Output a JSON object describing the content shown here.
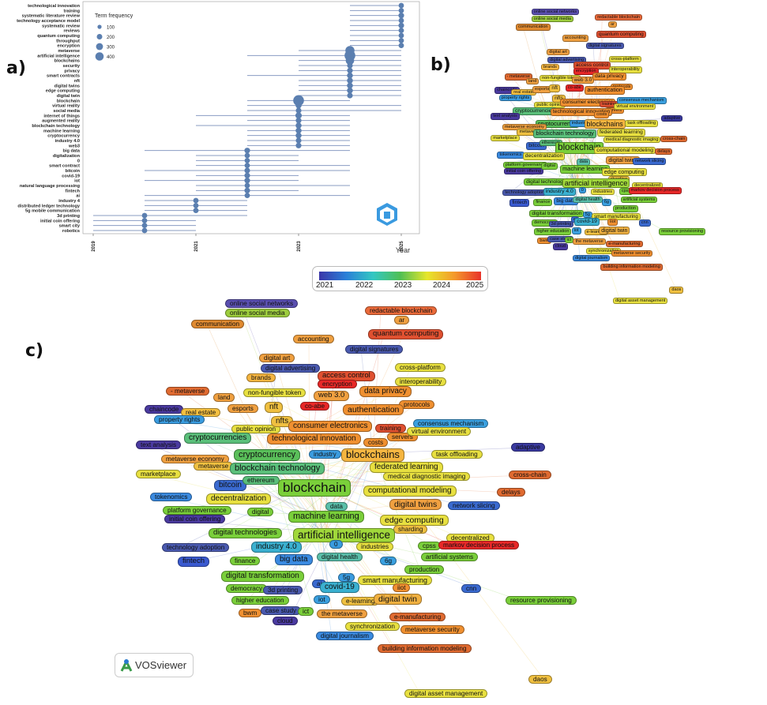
{
  "labels": {
    "a": "a)",
    "b": "b)",
    "c": "c)"
  },
  "chart_data": [
    {
      "type": "scatter",
      "panel": "a",
      "title": "",
      "xlabel": "Year",
      "ylabel": "",
      "xlim": [
        2018.8,
        2025.2
      ],
      "x_ticks": [
        "2019",
        "2021",
        "2023",
        "2025"
      ],
      "legend_title": "Term frequency",
      "legend_sizes": [
        "100",
        "200",
        "300",
        "400"
      ],
      "legend_placement": "top-left",
      "point_color": "#5b7fb0",
      "line_color": "#8a9cc2",
      "terms": [
        {
          "term": "technological innovation",
          "start": 2024,
          "peak": 2025,
          "end": 2025,
          "freq": 40
        },
        {
          "term": "training",
          "start": 2024,
          "peak": 2025,
          "end": 2025,
          "freq": 40
        },
        {
          "term": "systematic literature review",
          "start": 2024,
          "peak": 2025,
          "end": 2025,
          "freq": 50
        },
        {
          "term": "technology acceptance model",
          "start": 2024,
          "peak": 2025,
          "end": 2025,
          "freq": 40
        },
        {
          "term": "systematic review",
          "start": 2024,
          "peak": 2025,
          "end": 2025,
          "freq": 50
        },
        {
          "term": "reviews",
          "start": 2024,
          "peak": 2025,
          "end": 2025,
          "freq": 40
        },
        {
          "term": "quantum computing",
          "start": 2024,
          "peak": 2025,
          "end": 2025,
          "freq": 40
        },
        {
          "term": "throughput",
          "start": 2024,
          "peak": 2025,
          "end": 2025,
          "freq": 40
        },
        {
          "term": "encryption",
          "start": 2024,
          "peak": 2025,
          "end": 2025,
          "freq": 40
        },
        {
          "term": "metaverse",
          "start": 2023,
          "peak": 2024,
          "end": 2025,
          "freq": 250
        },
        {
          "term": "artificial intelligence",
          "start": 2022,
          "peak": 2024,
          "end": 2025,
          "freq": 400
        },
        {
          "term": "blockchains",
          "start": 2023,
          "peak": 2024,
          "end": 2025,
          "freq": 200
        },
        {
          "term": "security",
          "start": 2023,
          "peak": 2024,
          "end": 2025,
          "freq": 50
        },
        {
          "term": "privacy",
          "start": 2023,
          "peak": 2024,
          "end": 2025,
          "freq": 50
        },
        {
          "term": "smart contracts",
          "start": 2022,
          "peak": 2024,
          "end": 2025,
          "freq": 60
        },
        {
          "term": "nft",
          "start": 2023,
          "peak": 2024,
          "end": 2025,
          "freq": 60
        },
        {
          "term": "digital twins",
          "start": 2023,
          "peak": 2024,
          "end": 2025,
          "freq": 60
        },
        {
          "term": "edge computing",
          "start": 2023,
          "peak": 2024,
          "end": 2025,
          "freq": 60
        },
        {
          "term": "digital twin",
          "start": 2023,
          "peak": 2024,
          "end": 2025,
          "freq": 50
        },
        {
          "term": "blockchain",
          "start": 2022,
          "peak": 2023,
          "end": 2024,
          "freq": 400
        },
        {
          "term": "virtual reality",
          "start": 2022,
          "peak": 2023,
          "end": 2025,
          "freq": 60
        },
        {
          "term": "social media",
          "start": 2022,
          "peak": 2023,
          "end": 2025,
          "freq": 50
        },
        {
          "term": "internet of things",
          "start": 2021,
          "peak": 2023,
          "end": 2024,
          "freq": 80
        },
        {
          "term": "augmented reality",
          "start": 2022,
          "peak": 2023,
          "end": 2024,
          "freq": 50
        },
        {
          "term": "blockchain technology",
          "start": 2021,
          "peak": 2023,
          "end": 2024,
          "freq": 60
        },
        {
          "term": "machine learning",
          "start": 2022,
          "peak": 2023,
          "end": 2024,
          "freq": 60
        },
        {
          "term": "cryptocurrency",
          "start": 2022,
          "peak": 2023,
          "end": 2024,
          "freq": 60
        },
        {
          "term": "industry 4.0",
          "start": 2022,
          "peak": 2023,
          "end": 2024,
          "freq": 50
        },
        {
          "term": "web3",
          "start": 2022,
          "peak": 2023,
          "end": 2024,
          "freq": 50
        },
        {
          "term": "big data",
          "start": 2020,
          "peak": 2022,
          "end": 2024,
          "freq": 50
        },
        {
          "term": "digitalization",
          "start": 2021,
          "peak": 2022,
          "end": 2023,
          "freq": 40
        },
        {
          "term": "0",
          "start": 2021,
          "peak": 2022,
          "end": 2023,
          "freq": 40
        },
        {
          "term": "smart contract",
          "start": 2021,
          "peak": 2022,
          "end": 2024,
          "freq": 40
        },
        {
          "term": "bitcoin",
          "start": 2020,
          "peak": 2022,
          "end": 2024,
          "freq": 50
        },
        {
          "term": "covid-19",
          "start": 2021,
          "peak": 2022,
          "end": 2023,
          "freq": 50
        },
        {
          "term": "iot",
          "start": 2020,
          "peak": 2022,
          "end": 2023,
          "freq": 50
        },
        {
          "term": "natural language processing",
          "start": 2021,
          "peak": 2022,
          "end": 2024,
          "freq": 40
        },
        {
          "term": "fintech",
          "start": 2021,
          "peak": 2022,
          "end": 2023,
          "freq": 50
        },
        {
          "term": "ai",
          "start": 2020,
          "peak": 2022,
          "end": 2024,
          "freq": 40
        },
        {
          "term": "industry 4",
          "start": 2020,
          "peak": 2021,
          "end": 2022,
          "freq": 40
        },
        {
          "term": "distributed ledger technology",
          "start": 2020,
          "peak": 2021,
          "end": 2022,
          "freq": 40
        },
        {
          "term": "5g mobile communication",
          "start": 2020,
          "peak": 2021,
          "end": 2022,
          "freq": 40
        },
        {
          "term": "3d printing",
          "start": 2019,
          "peak": 2020,
          "end": 2022,
          "freq": 40
        },
        {
          "term": "initial coin offering",
          "start": 2019,
          "peak": 2020,
          "end": 2021,
          "freq": 40
        },
        {
          "term": "smart city",
          "start": 2019,
          "peak": 2020,
          "end": 2021,
          "freq": 40
        },
        {
          "term": "robotics",
          "start": 2019,
          "peak": 2020,
          "end": 2021,
          "freq": 40
        }
      ]
    },
    {
      "type": "network",
      "panel": "b",
      "tool": "VOSviewer overlay visualization",
      "colorbar": {
        "ticks": [
          "2021",
          "2022",
          "2023",
          "2024",
          "2025"
        ]
      },
      "nodes": [
        {
          "label": "online social networks",
          "color": "#5a4fb0"
        },
        {
          "label": "online social media",
          "color": "#9ccc3c"
        },
        {
          "label": "redactable blockchain",
          "color": "#ea6a3a"
        },
        {
          "label": "ar",
          "color": "#f0a040"
        },
        {
          "label": "communication",
          "color": "#e08a30"
        },
        {
          "label": "accounting",
          "color": "#f0a040"
        },
        {
          "label": "quantum computing",
          "color": "#e05030"
        },
        {
          "label": "digital signatures",
          "color": "#4a5ab0"
        },
        {
          "label": "digital art",
          "color": "#f0a040"
        },
        {
          "label": "digital advertising",
          "color": "#4a5ab0"
        },
        {
          "label": "brands",
          "color": "#f5b540"
        },
        {
          "label": "access control",
          "color": "#e05030"
        },
        {
          "label": "cross-platform",
          "color": "#e8e040"
        },
        {
          "label": "encryption",
          "color": "#e82828"
        },
        {
          "label": "interoperability",
          "color": "#e8e040"
        },
        {
          "label": "- metaverse",
          "color": "#e06a30"
        },
        {
          "label": "land",
          "color": "#f0a040"
        },
        {
          "label": "non-fungible token",
          "color": "#e8e040"
        },
        {
          "label": "web 3.0",
          "color": "#f0a040"
        },
        {
          "label": "data privacy",
          "color": "#f09030"
        },
        {
          "label": "protocols",
          "color": "#f09030"
        },
        {
          "label": "chaincode",
          "color": "#4a3aa0"
        },
        {
          "label": "real estate",
          "color": "#f5c040"
        },
        {
          "label": "esports",
          "color": "#f0a040"
        },
        {
          "label": "nft",
          "color": "#f0c040"
        },
        {
          "label": "co-abe",
          "color": "#e82828"
        },
        {
          "label": "authentication",
          "color": "#f09030"
        },
        {
          "label": "property rights",
          "color": "#3a9ce0"
        },
        {
          "label": "public opinion",
          "color": "#e8e040"
        },
        {
          "label": "nfts",
          "color": "#f0c040"
        },
        {
          "label": "consumer electronics",
          "color": "#f09030"
        },
        {
          "label": "training",
          "color": "#e05030"
        },
        {
          "label": "consensus mechanism",
          "color": "#3aa0e0"
        },
        {
          "label": "servers",
          "color": "#f09030"
        },
        {
          "label": "virtual environment",
          "color": "#e8e040"
        },
        {
          "label": "cryptocurrencies",
          "color": "#5abf7a"
        },
        {
          "label": "technological innovation",
          "color": "#f09030"
        },
        {
          "label": "costs",
          "color": "#f09030"
        },
        {
          "label": "text analysis",
          "color": "#4a3aa0"
        },
        {
          "label": "cryptocurrency",
          "color": "#5abf5a"
        },
        {
          "label": "industry",
          "color": "#3a9ce0"
        },
        {
          "label": "blockchains",
          "color": "#f5b540"
        },
        {
          "label": "adaptive",
          "color": "#3a3aa0"
        },
        {
          "label": "metaverse economy",
          "color": "#f0a040"
        },
        {
          "label": "metaverse",
          "color": "#f0c040"
        },
        {
          "label": "task offloading",
          "color": "#e8e040"
        },
        {
          "label": "blockchain technology",
          "color": "#5abf7a"
        },
        {
          "label": "federated learning",
          "color": "#e8e040"
        },
        {
          "label": "marketplace",
          "color": "#e8e040"
        },
        {
          "label": "medical diagnostic imaging",
          "color": "#e8e040"
        },
        {
          "label": "cross-chain",
          "color": "#e06a30"
        },
        {
          "label": "bitcoin",
          "color": "#3a6ad0"
        },
        {
          "label": "ethereum",
          "color": "#5abf7a"
        },
        {
          "label": "blockchain",
          "color": "#7acf3a"
        },
        {
          "label": "computational modeling",
          "color": "#e8e040"
        },
        {
          "label": "delays",
          "color": "#e06a30"
        },
        {
          "label": "tokenomics",
          "color": "#3a8ae0"
        },
        {
          "label": "decentralization",
          "color": "#e8e040"
        },
        {
          "label": "digital twins",
          "color": "#f0a040"
        },
        {
          "label": "network slicing",
          "color": "#3a6ad0"
        },
        {
          "label": "platform governance",
          "color": "#7acf3a"
        },
        {
          "label": "initial coin offering",
          "color": "#4a3aa0"
        },
        {
          "label": "data",
          "color": "#5abfaa"
        },
        {
          "label": "digital",
          "color": "#7acf3a"
        },
        {
          "label": "machine learning",
          "color": "#7acf3a"
        },
        {
          "label": "edge computing",
          "color": "#e8e040"
        },
        {
          "label": "sharding",
          "color": "#f0c040"
        },
        {
          "label": "digital technologies",
          "color": "#7acf3a"
        },
        {
          "label": "artificial intelligence",
          "color": "#a0d83a"
        },
        {
          "label": "decentralized",
          "color": "#e8e040"
        },
        {
          "label": "technology adoption",
          "color": "#4a5ab0"
        },
        {
          "label": "industry 4.0",
          "color": "#3ab0d0"
        },
        {
          "label": "0",
          "color": "#3a9ce0"
        },
        {
          "label": "industries",
          "color": "#e8e040"
        },
        {
          "label": "cpss",
          "color": "#7acf3a"
        },
        {
          "label": "markov decision process",
          "color": "#e82828"
        },
        {
          "label": "fintech",
          "color": "#3a5ad0"
        },
        {
          "label": "finance",
          "color": "#7acf3a"
        },
        {
          "label": "big data",
          "color": "#3a8ae0"
        },
        {
          "label": "digital health",
          "color": "#5abfaa"
        },
        {
          "label": "6g",
          "color": "#3aa0e0"
        },
        {
          "label": "artificial systems",
          "color": "#7acf3a"
        },
        {
          "label": "production",
          "color": "#7acf3a"
        },
        {
          "label": "digital transformation",
          "color": "#7acf3a"
        },
        {
          "label": "5g",
          "color": "#3a9ce0"
        },
        {
          "label": "smart manufacturing",
          "color": "#e8e040"
        },
        {
          "label": "democracy",
          "color": "#7acf3a"
        },
        {
          "label": "3d printing",
          "color": "#4a5ab0"
        },
        {
          "label": "ai",
          "color": "#3a6ad0"
        },
        {
          "label": "covid-19",
          "color": "#3ab0d0"
        },
        {
          "label": "iiot",
          "color": "#f09030"
        },
        {
          "label": "cnn",
          "color": "#3a6ad0"
        },
        {
          "label": "higher education",
          "color": "#7acf3a"
        },
        {
          "label": "iot",
          "color": "#3aa0e0"
        },
        {
          "label": "e-learning",
          "color": "#f0c040"
        },
        {
          "label": "digital twin",
          "color": "#f0b040"
        },
        {
          "label": "resource provisioning",
          "color": "#7acf3a"
        },
        {
          "label": "bwm",
          "color": "#f09030"
        },
        {
          "label": "case study",
          "color": "#4a5ab0"
        },
        {
          "label": "ict",
          "color": "#7acf3a"
        },
        {
          "label": "the metaverse",
          "color": "#f0a040"
        },
        {
          "label": "e-manufacturing",
          "color": "#e06a30"
        },
        {
          "label": "cloud",
          "color": "#4a3aa0"
        },
        {
          "label": "synchronization",
          "color": "#e8e040"
        },
        {
          "label": "metaverse security",
          "color": "#f09030"
        },
        {
          "label": "digital journalism",
          "color": "#3a8ae0"
        },
        {
          "label": "building information modeling",
          "color": "#e06a30"
        },
        {
          "label": "daos",
          "color": "#f0c040"
        },
        {
          "label": "digital asset management",
          "color": "#e8e040"
        }
      ]
    },
    {
      "type": "network",
      "panel": "c",
      "tool": "VOSviewer",
      "same_nodes_as": "b"
    }
  ]
}
